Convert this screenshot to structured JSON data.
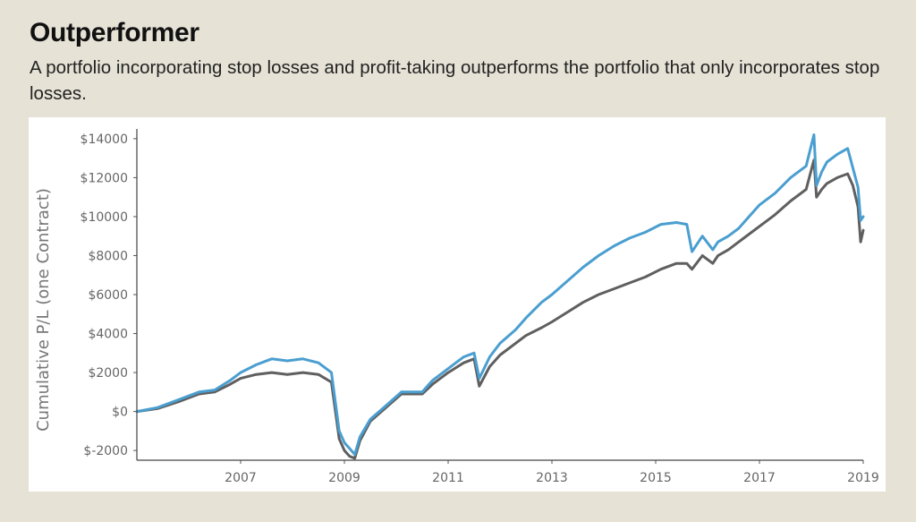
{
  "header": {
    "title": "Outperformer",
    "subtitle": "A portfolio incorporating stop losses and profit-taking outperforms the portfolio that only incorporates stop losses."
  },
  "chart_data": {
    "type": "line",
    "title": "Outperformer",
    "subtitle": "A portfolio incorporating stop losses and profit-taking outperforms the portfolio that only incorporates stop losses.",
    "xlabel": "",
    "ylabel": "Cumulative P/L (one Contract)",
    "xlim": [
      2005.0,
      2019.0
    ],
    "ylim": [
      -2500,
      14500
    ],
    "x_ticks": [
      2007,
      2009,
      2011,
      2013,
      2015,
      2017,
      2019
    ],
    "x_tick_labels": [
      "2007",
      "2009",
      "2011",
      "2013",
      "2015",
      "2017",
      "2019"
    ],
    "y_ticks": [
      -2000,
      0,
      2000,
      4000,
      6000,
      8000,
      10000,
      12000,
      14000
    ],
    "y_tick_labels": [
      "$-2000",
      "$0",
      "$2000",
      "$4000",
      "$6000",
      "$8000",
      "$10000",
      "$12000",
      "$14000"
    ],
    "grid": false,
    "legend": "none",
    "colors": {
      "stop_loss_and_profit_taking": "#4a9ed0",
      "stop_loss_only": "#5f5f5f"
    },
    "series": [
      {
        "x": [
          2005.0,
          2005.4,
          2005.8,
          2006.2,
          2006.5,
          2006.8,
          2007.0,
          2007.3,
          2007.6,
          2007.9,
          2008.2,
          2008.5,
          2008.75,
          2008.9,
          2009.0,
          2009.1,
          2009.2,
          2009.3,
          2009.5,
          2009.8,
          2010.1,
          2010.3,
          2010.5,
          2010.7,
          2011.0,
          2011.3,
          2011.5,
          2011.6,
          2011.8,
          2012.0,
          2012.3,
          2012.5,
          2012.8,
          2013.0,
          2013.3,
          2013.6,
          2013.9,
          2014.2,
          2014.5,
          2014.8,
          2015.1,
          2015.4,
          2015.6,
          2015.7,
          2015.9,
          2016.1,
          2016.2,
          2016.4,
          2016.6,
          2016.8,
          2017.0,
          2017.3,
          2017.6,
          2017.9,
          2018.05,
          2018.1,
          2018.2,
          2018.3,
          2018.5,
          2018.7,
          2018.8,
          2018.9,
          2018.95,
          2019.0
        ],
        "values": [
          0,
          200,
          600,
          1000,
          1100,
          1600,
          2000,
          2400,
          2700,
          2600,
          2700,
          2500,
          2000,
          -1000,
          -1600,
          -1900,
          -2200,
          -1300,
          -400,
          300,
          1000,
          1000,
          1000,
          1600,
          2200,
          2800,
          3000,
          1700,
          2800,
          3500,
          4200,
          4800,
          5600,
          6000,
          6700,
          7400,
          8000,
          8500,
          8900,
          9200,
          9600,
          9700,
          9600,
          8200,
          9000,
          8300,
          8700,
          9000,
          9400,
          10000,
          10600,
          11200,
          12000,
          12600,
          14200,
          11600,
          12300,
          12800,
          13200,
          13500,
          12500,
          11500,
          9800,
          10000
        ]
      },
      {
        "x": [
          2005.0,
          2005.4,
          2005.8,
          2006.2,
          2006.5,
          2006.8,
          2007.0,
          2007.3,
          2007.6,
          2007.9,
          2008.2,
          2008.5,
          2008.75,
          2008.9,
          2009.0,
          2009.1,
          2009.2,
          2009.3,
          2009.5,
          2009.8,
          2010.1,
          2010.3,
          2010.5,
          2010.7,
          2011.0,
          2011.3,
          2011.5,
          2011.6,
          2011.8,
          2012.0,
          2012.3,
          2012.5,
          2012.8,
          2013.0,
          2013.3,
          2013.6,
          2013.9,
          2014.2,
          2014.5,
          2014.8,
          2015.1,
          2015.4,
          2015.6,
          2015.7,
          2015.9,
          2016.1,
          2016.2,
          2016.4,
          2016.6,
          2016.8,
          2017.0,
          2017.3,
          2017.6,
          2017.9,
          2018.05,
          2018.1,
          2018.2,
          2018.3,
          2018.5,
          2018.7,
          2018.8,
          2018.9,
          2018.95,
          2019.0
        ],
        "values": [
          0,
          150,
          500,
          900,
          1000,
          1400,
          1700,
          1900,
          2000,
          1900,
          2000,
          1900,
          1500,
          -1400,
          -2000,
          -2300,
          -2400,
          -1500,
          -500,
          200,
          900,
          900,
          900,
          1400,
          2000,
          2500,
          2700,
          1300,
          2300,
          2900,
          3500,
          3900,
          4300,
          4600,
          5100,
          5600,
          6000,
          6300,
          6600,
          6900,
          7300,
          7600,
          7600,
          7300,
          8000,
          7600,
          8000,
          8300,
          8700,
          9100,
          9500,
          10100,
          10800,
          11400,
          12900,
          11000,
          11400,
          11700,
          12000,
          12200,
          11600,
          10500,
          8700,
          9300
        ]
      }
    ]
  }
}
